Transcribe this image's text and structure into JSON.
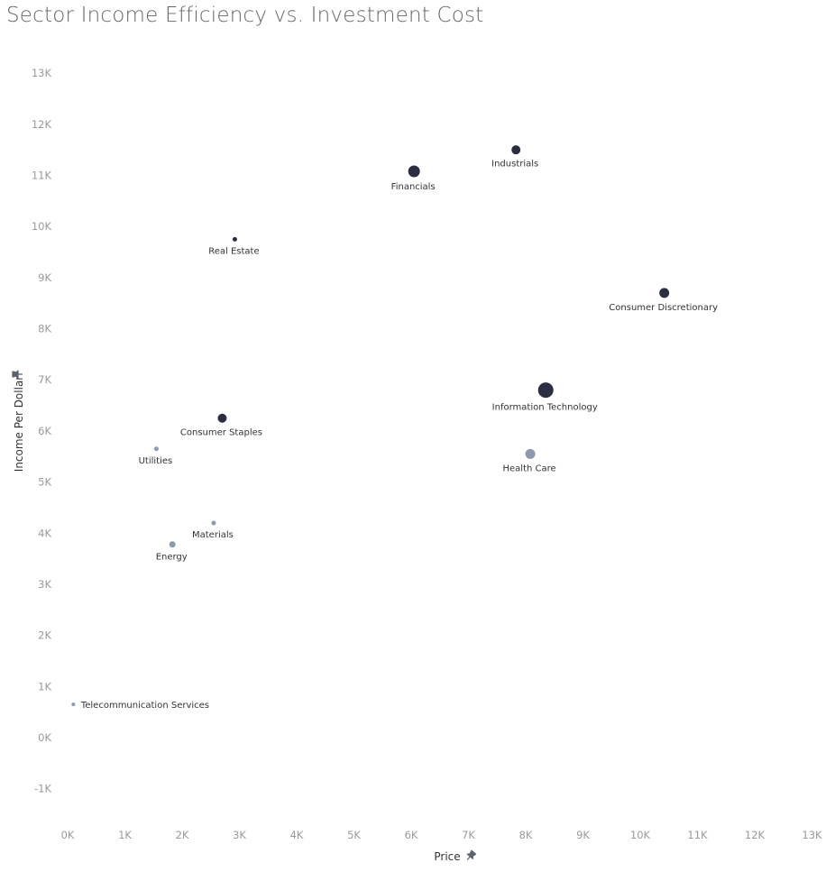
{
  "chart_data": {
    "type": "scatter",
    "title": "Sector Income Efficiency vs. Investment Cost",
    "xlabel": "Price",
    "ylabel": "Income Per Dollar",
    "xlim": [
      0,
      13000
    ],
    "ylim": [
      -1000,
      13000
    ],
    "x_ticks": [
      "0K",
      "1K",
      "2K",
      "3K",
      "4K",
      "5K",
      "6K",
      "7K",
      "8K",
      "9K",
      "10K",
      "11K",
      "12K",
      "13K"
    ],
    "y_ticks": [
      "-1K",
      "0K",
      "1K",
      "2K",
      "3K",
      "4K",
      "5K",
      "6K",
      "7K",
      "8K",
      "9K",
      "10K",
      "11K",
      "12K",
      "13K"
    ],
    "grid": false,
    "size_encoded": true,
    "color_encoded": true,
    "points": [
      {
        "label": "Industrials",
        "x": 7830,
        "y": 11500,
        "size": 5.5,
        "color": "#2b2d42",
        "label_pos": "below"
      },
      {
        "label": "Financials",
        "x": 6050,
        "y": 11080,
        "size": 7,
        "color": "#2b2d42",
        "label_pos": "below"
      },
      {
        "label": "Real Estate",
        "x": 2920,
        "y": 9750,
        "size": 3,
        "color": "#2b2d42",
        "label_pos": "below"
      },
      {
        "label": "Consumer Discretionary",
        "x": 10420,
        "y": 8700,
        "size": 6,
        "color": "#2b2d42",
        "label_pos": "below"
      },
      {
        "label": "Information Technology",
        "x": 8350,
        "y": 6800,
        "size": 9,
        "color": "#2b2d42",
        "label_pos": "below"
      },
      {
        "label": "Consumer Staples",
        "x": 2700,
        "y": 6250,
        "size": 5.5,
        "color": "#2b2d42",
        "label_pos": "below"
      },
      {
        "label": "Health Care",
        "x": 8080,
        "y": 5550,
        "size": 6,
        "color": "#8d99ae",
        "label_pos": "below"
      },
      {
        "label": "Utilities",
        "x": 1550,
        "y": 5650,
        "size": 3,
        "color": "#8d99ae",
        "label_pos": "below"
      },
      {
        "label": "Materials",
        "x": 2550,
        "y": 4200,
        "size": 3,
        "color": "#8d99ae",
        "label_pos": "below"
      },
      {
        "label": "Energy",
        "x": 1830,
        "y": 3780,
        "size": 4,
        "color": "#8d99ae",
        "label_pos": "below"
      },
      {
        "label": "Telecommunication Services",
        "x": 100,
        "y": 650,
        "size": 2.5,
        "color": "#8d99ae",
        "label_pos": "right"
      }
    ],
    "pin_icon": "pin-icon",
    "pin_color": "#5c6370"
  }
}
